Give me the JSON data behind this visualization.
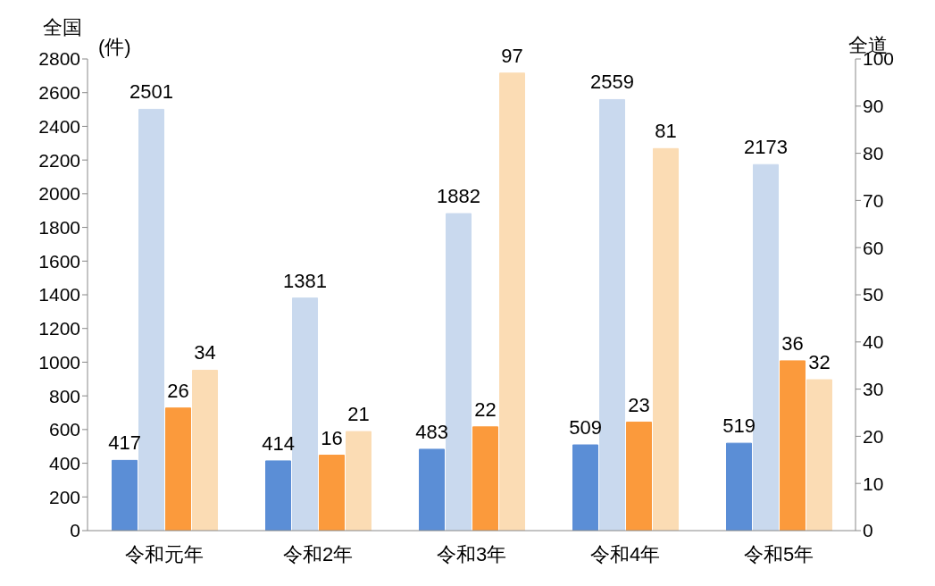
{
  "chart_data": {
    "type": "bar",
    "ylabel": "全国",
    "y2label": "全道",
    "annotations": [
      "(件)"
    ],
    "categories": [
      "令和元年",
      "令和2年",
      "令和3年",
      "令和4年",
      "令和5年"
    ],
    "series": [
      {
        "color": "#5b8ed6",
        "values": [
          417,
          414,
          483,
          509,
          519
        ]
      },
      {
        "color": "#c9d9ee",
        "values": [
          2501,
          1381,
          1882,
          2559,
          2173
        ]
      },
      {
        "color": "#fb9a3c",
        "axis": "y2",
        "values": [
          26,
          16,
          22,
          23,
          36
        ]
      },
      {
        "color": "#fbdcb4",
        "axis": "y2",
        "values": [
          34,
          21,
          97,
          81,
          32
        ]
      }
    ],
    "ylim": [
      0,
      2800
    ],
    "yticks": [
      0,
      200,
      400,
      600,
      800,
      1000,
      1200,
      1400,
      1600,
      1800,
      2000,
      2200,
      2400,
      2600,
      2800
    ],
    "y2lim": [
      0,
      100
    ],
    "y2ticks": [
      0,
      10,
      20,
      30,
      40,
      50,
      60,
      70,
      80,
      90,
      100
    ],
    "data_labels": true,
    "grid": false,
    "legend": false
  }
}
